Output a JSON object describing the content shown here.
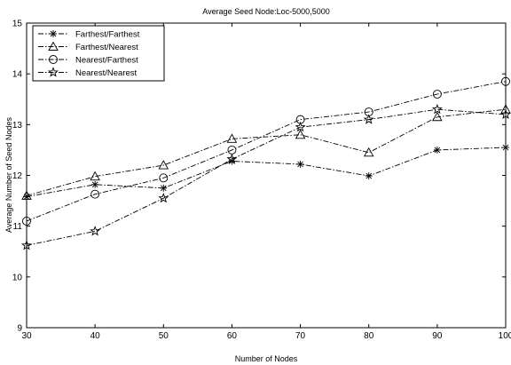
{
  "chart_data": {
    "type": "line",
    "title": "Average Seed Node:Loc-5000,5000",
    "xlabel": "Number of Nodes",
    "ylabel": "Average Number of Seed Nodes",
    "x": [
      30,
      40,
      50,
      60,
      70,
      80,
      90,
      100
    ],
    "xlim": [
      30,
      100
    ],
    "ylim": [
      9,
      15
    ],
    "xticks": [
      "30",
      "40",
      "50",
      "60",
      "70",
      "80",
      "90",
      "100"
    ],
    "yticks": [
      "9",
      "10",
      "11",
      "12",
      "13",
      "14",
      "15"
    ],
    "grid": false,
    "legend_position": "top-left",
    "series": [
      {
        "name": "Farthest/Farthest",
        "marker": "asterisk",
        "values": [
          11.58,
          11.82,
          11.75,
          12.28,
          12.22,
          11.99,
          12.5,
          12.55
        ]
      },
      {
        "name": "Farthest/Nearest",
        "marker": "triangle",
        "values": [
          11.6,
          11.98,
          12.2,
          12.72,
          12.8,
          12.45,
          13.15,
          13.3
        ]
      },
      {
        "name": "Nearest/Farthest",
        "marker": "circle",
        "values": [
          11.1,
          11.63,
          11.95,
          12.5,
          13.1,
          13.25,
          13.6,
          13.85
        ]
      },
      {
        "name": "Nearest/Nearest",
        "marker": "star",
        "values": [
          10.62,
          10.9,
          11.55,
          12.32,
          12.95,
          13.1,
          13.3,
          13.2
        ]
      }
    ]
  }
}
